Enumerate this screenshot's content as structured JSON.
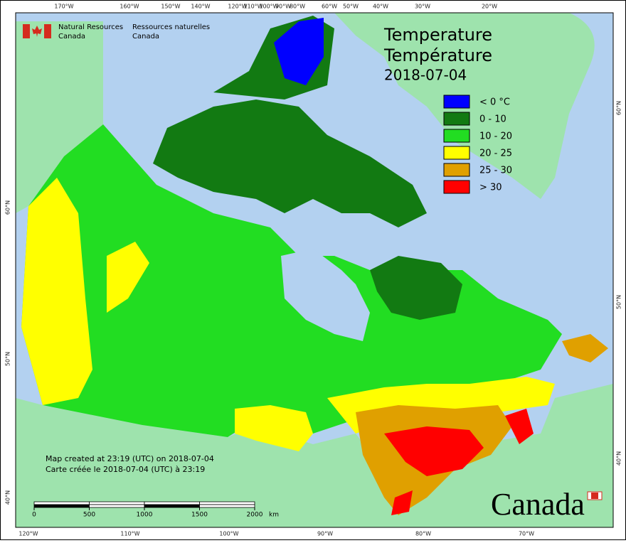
{
  "agency": {
    "en": [
      "Natural Resources",
      "Canada"
    ],
    "fr": [
      "Ressources naturelles",
      "Canada"
    ]
  },
  "title": [
    "Temperature",
    "Température"
  ],
  "date": "2018-07-04",
  "legend": [
    {
      "label": "< 0 °C",
      "color": "#0000ff"
    },
    {
      "label": "0 - 10",
      "color": "#127a12"
    },
    {
      "label": "10 - 20",
      "color": "#22dd22"
    },
    {
      "label": "20 - 25",
      "color": "#ffff00"
    },
    {
      "label": "25 - 30",
      "color": "#e0a000"
    },
    {
      "label": "> 30",
      "color": "#ff0000"
    }
  ],
  "graticule": {
    "top": [
      "170°W",
      "160°W",
      "150°W",
      "140°W",
      "120°W",
      "110°W",
      "100°W",
      "90°W",
      "80°W",
      "60°W",
      "50°W",
      "40°W",
      "30°W",
      "20°W"
    ],
    "bottom": [
      "120°W",
      "110°W",
      "100°W",
      "90°W",
      "80°W",
      "70°W"
    ],
    "left": [
      "60°N",
      "50°N",
      "40°N"
    ],
    "right": [
      "60°N",
      "50°N",
      "40°N"
    ]
  },
  "credits": [
    "Map created at 23:19 (UTC) on 2018-07-04",
    "Carte créée le 2018-07-04 (UTC) à 23:19"
  ],
  "scale": {
    "ticks": [
      0,
      500,
      1000,
      1500,
      2000
    ],
    "unit": "km"
  },
  "wordmark": "Canada"
}
